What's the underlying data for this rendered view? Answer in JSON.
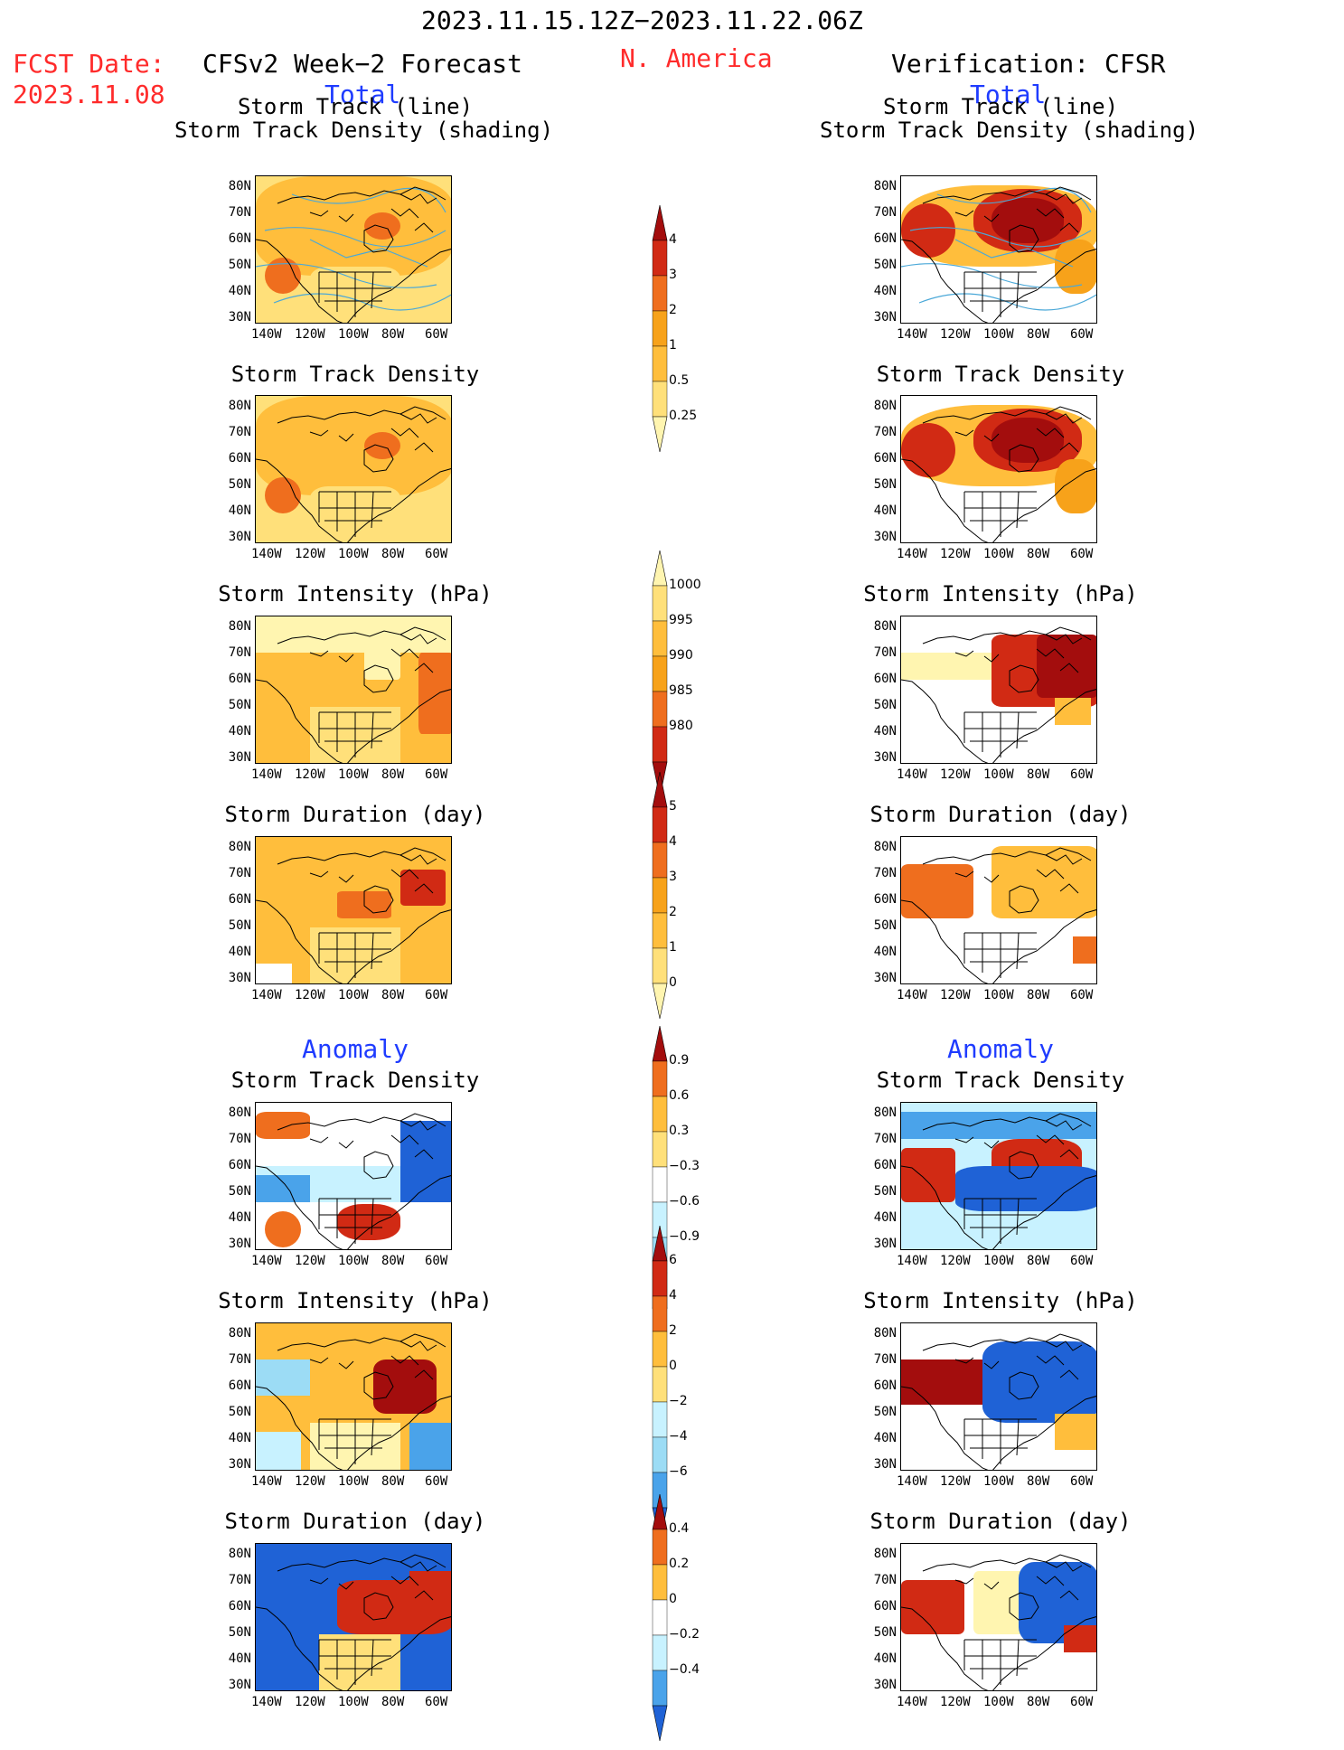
{
  "header": {
    "period": "2023.11.15.12Z−2023.11.22.06Z",
    "region": "N. America",
    "fcst_label": "FCST Date:",
    "fcst_date": "2023.11.08",
    "left_title": "CFSv2 Week−2 Forecast",
    "right_title": "Verification: CFSR"
  },
  "sections": {
    "total": "Total",
    "anomaly": "Anomaly"
  },
  "panel_titles": {
    "track_line": "Storm Track (line)",
    "track_density_shading": "Storm Track Density (shading)",
    "track_density": "Storm Track Density",
    "intensity": "Storm Intensity (hPa)",
    "duration": "Storm Duration (day)"
  },
  "axes": {
    "lat": [
      "80N",
      "70N",
      "60N",
      "50N",
      "40N",
      "30N"
    ],
    "lon": [
      "140W",
      "120W",
      "100W",
      "80W",
      "60W"
    ]
  },
  "colorbars": {
    "total_density": [
      "4",
      "3",
      "2",
      "1",
      "0.5",
      "0.25"
    ],
    "total_intensity": [
      "1000",
      "995",
      "990",
      "985",
      "980"
    ],
    "total_duration": [
      "5",
      "4",
      "3",
      "2",
      "1",
      "0"
    ],
    "anom_density": [
      "0.9",
      "0.6",
      "0.3",
      "−0.3",
      "−0.6",
      "−0.9"
    ],
    "anom_intensity": [
      "6",
      "4",
      "2",
      "0",
      "−2",
      "−4",
      "−6"
    ],
    "anom_duration": [
      "0.4",
      "0.2",
      "0",
      "−0.2",
      "−0.4"
    ]
  },
  "colors": {
    "header_red": "#ff2b2b",
    "section_blue": "#1f3cff",
    "warm_scale": [
      "#fff5b0",
      "#ffe07a",
      "#ffbe3c",
      "#f7a21a",
      "#ef6e1e",
      "#d12a14",
      "#a30d0d"
    ],
    "cool_scale": [
      "#c8f2ff",
      "#9cdcf5",
      "#4aa3ea",
      "#1f62d6"
    ],
    "track_line": "#4aa8d8"
  }
}
